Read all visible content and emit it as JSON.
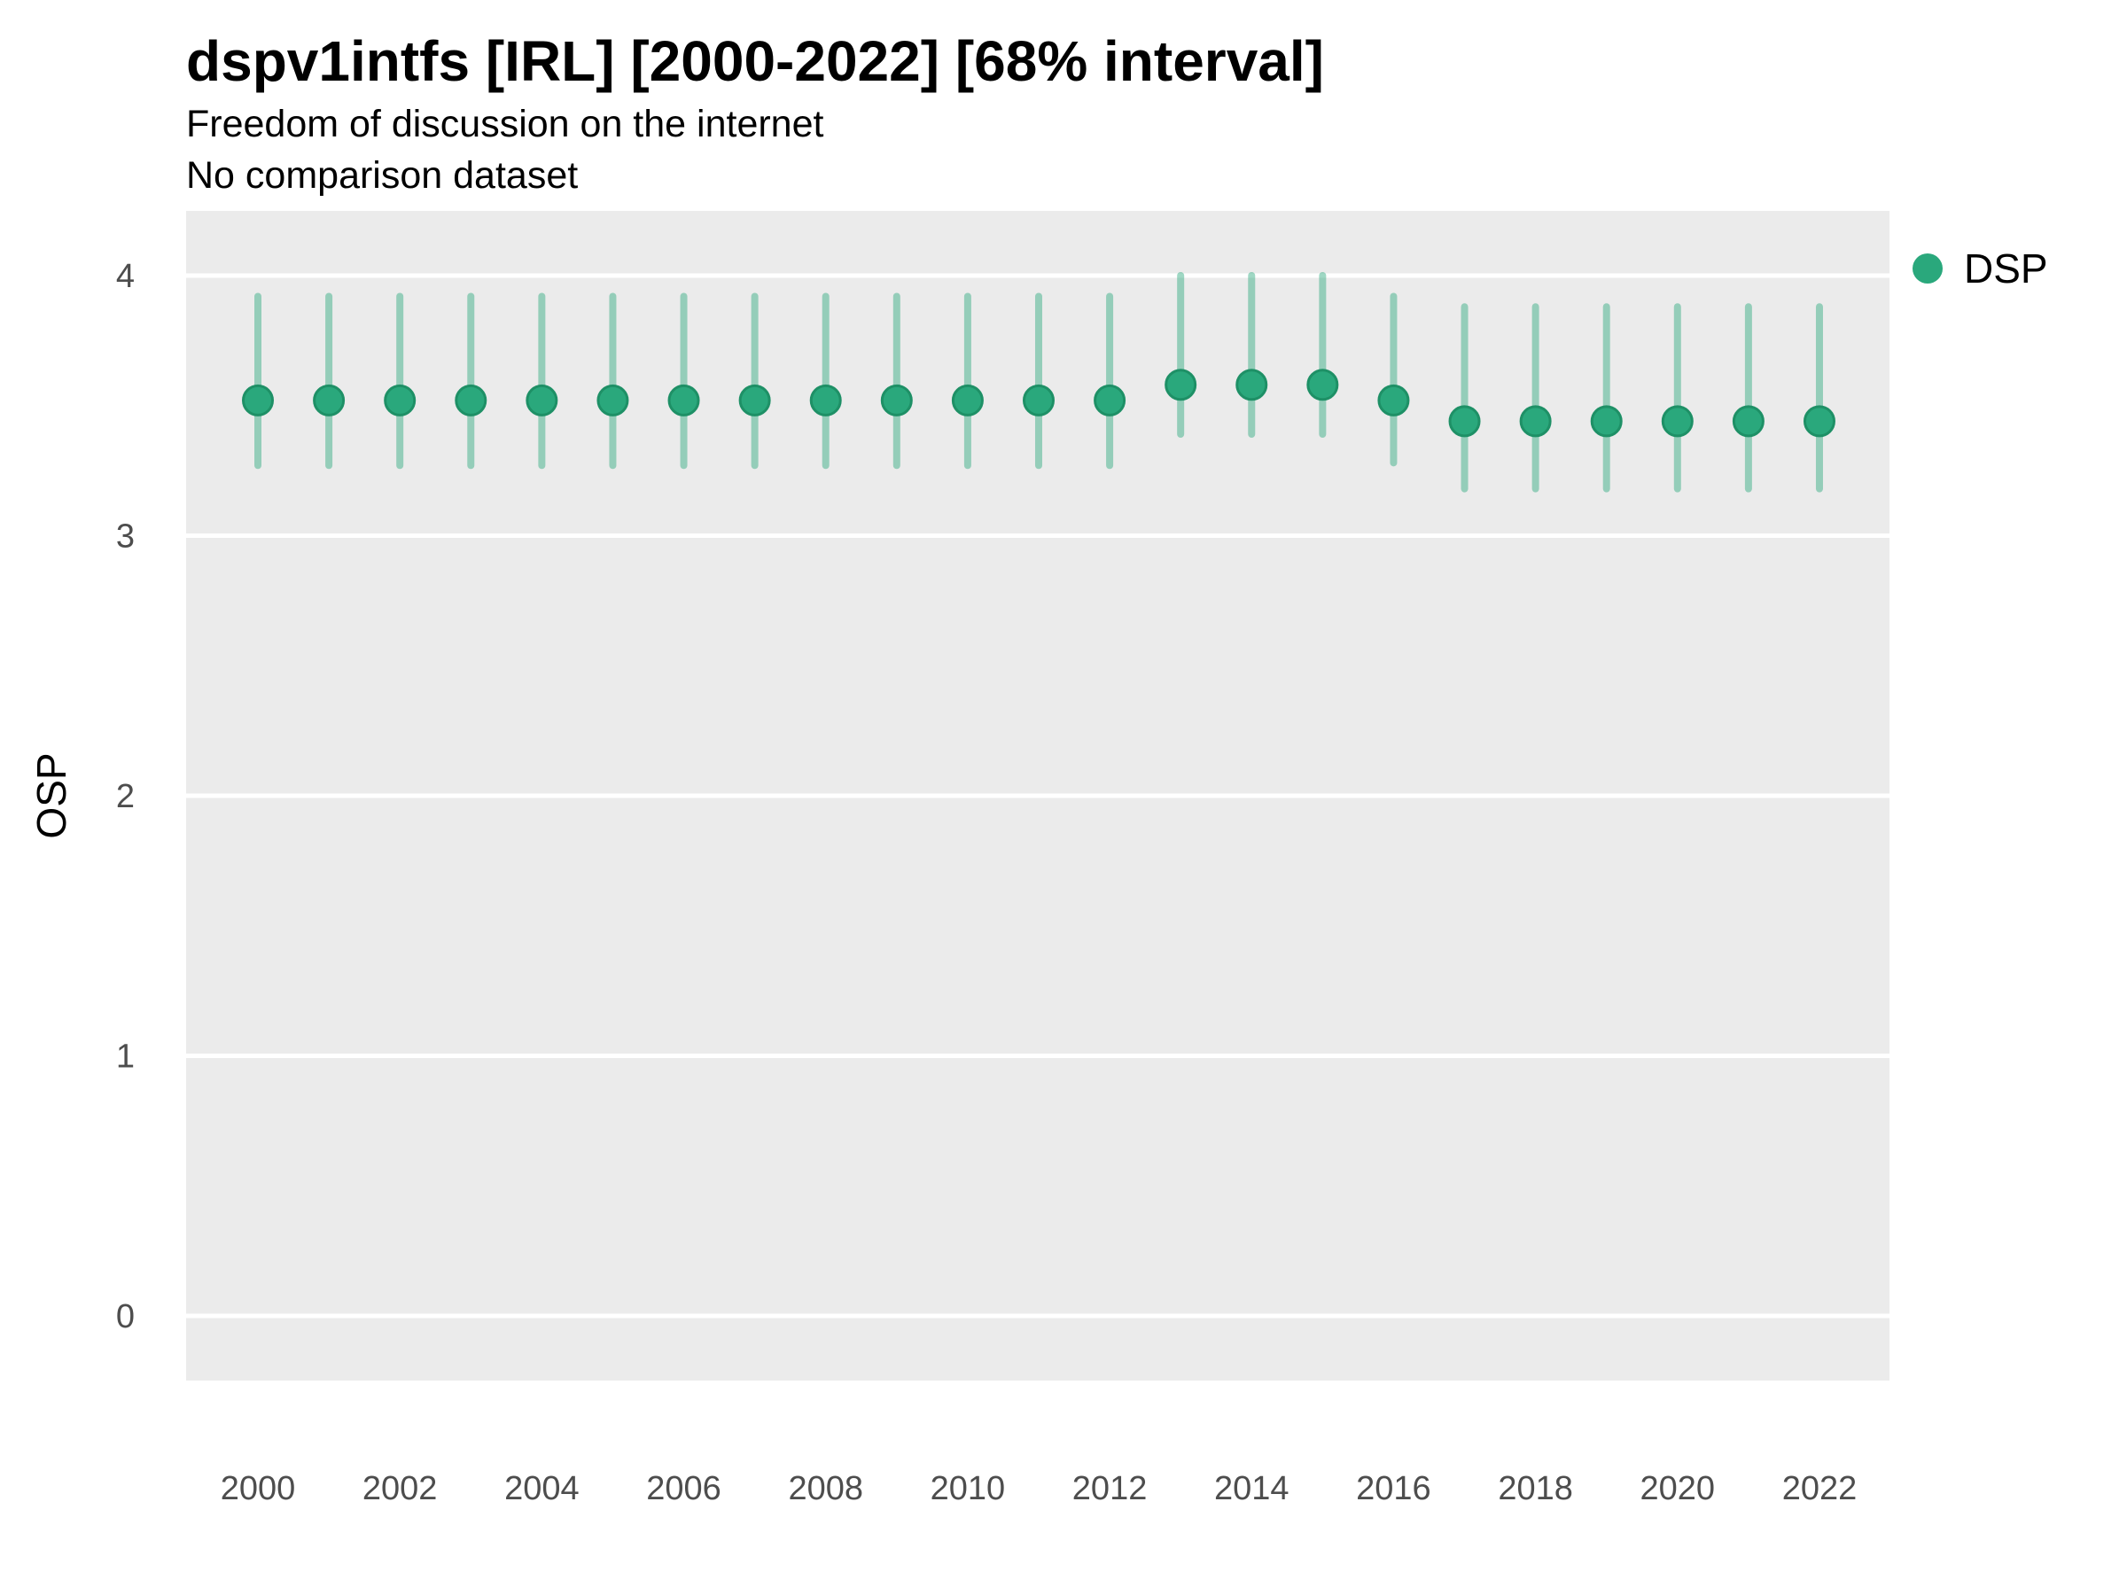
{
  "header": {
    "title": "dspv1intfs [IRL] [2000-2022] [68% interval]",
    "subtitle": "Freedom of discussion on the internet",
    "subtitle2": "No comparison dataset"
  },
  "colors": {
    "panel_background": "#EBEBEB",
    "gridline": "#FFFFFF",
    "point_fill": "#2AA87C",
    "point_stroke": "#1E9066",
    "interval": "rgba(42,168,124,0.45)",
    "tick_text": "#4D4D4D",
    "text": "#000000"
  },
  "chart_data": {
    "type": "pointrange",
    "title": "dspv1intfs [IRL] [2000-2022] [68% interval]",
    "subtitle": "Freedom of discussion on the internet",
    "subtitle2": "No comparison dataset",
    "xlabel": "",
    "ylabel": "OSP",
    "ylim": [
      -0.25,
      4.25
    ],
    "y_ticks": [
      0,
      1,
      2,
      3,
      4
    ],
    "x_ticks": [
      2000,
      2002,
      2004,
      2006,
      2008,
      2010,
      2012,
      2014,
      2016,
      2018,
      2020,
      2022
    ],
    "grid": "major-y only, white lines on grey panel",
    "legend": {
      "position": "right",
      "entries": [
        {
          "label": "DSP",
          "color": "#2AA87C"
        }
      ]
    },
    "interval_level": "68%",
    "series": [
      {
        "name": "DSP",
        "points": [
          {
            "year": 2000,
            "est": 3.52,
            "lo": 3.27,
            "hi": 3.92
          },
          {
            "year": 2001,
            "est": 3.52,
            "lo": 3.27,
            "hi": 3.92
          },
          {
            "year": 2002,
            "est": 3.52,
            "lo": 3.27,
            "hi": 3.92
          },
          {
            "year": 2003,
            "est": 3.52,
            "lo": 3.27,
            "hi": 3.92
          },
          {
            "year": 2004,
            "est": 3.52,
            "lo": 3.27,
            "hi": 3.92
          },
          {
            "year": 2005,
            "est": 3.52,
            "lo": 3.27,
            "hi": 3.92
          },
          {
            "year": 2006,
            "est": 3.52,
            "lo": 3.27,
            "hi": 3.92
          },
          {
            "year": 2007,
            "est": 3.52,
            "lo": 3.27,
            "hi": 3.92
          },
          {
            "year": 2008,
            "est": 3.52,
            "lo": 3.27,
            "hi": 3.92
          },
          {
            "year": 2009,
            "est": 3.52,
            "lo": 3.27,
            "hi": 3.92
          },
          {
            "year": 2010,
            "est": 3.52,
            "lo": 3.27,
            "hi": 3.92
          },
          {
            "year": 2011,
            "est": 3.52,
            "lo": 3.27,
            "hi": 3.92
          },
          {
            "year": 2012,
            "est": 3.52,
            "lo": 3.27,
            "hi": 3.92
          },
          {
            "year": 2013,
            "est": 3.58,
            "lo": 3.39,
            "hi": 4.0
          },
          {
            "year": 2014,
            "est": 3.58,
            "lo": 3.39,
            "hi": 4.0
          },
          {
            "year": 2015,
            "est": 3.58,
            "lo": 3.39,
            "hi": 4.0
          },
          {
            "year": 2016,
            "est": 3.52,
            "lo": 3.28,
            "hi": 3.92
          },
          {
            "year": 2017,
            "est": 3.44,
            "lo": 3.18,
            "hi": 3.88
          },
          {
            "year": 2018,
            "est": 3.44,
            "lo": 3.18,
            "hi": 3.88
          },
          {
            "year": 2019,
            "est": 3.44,
            "lo": 3.18,
            "hi": 3.88
          },
          {
            "year": 2020,
            "est": 3.44,
            "lo": 3.18,
            "hi": 3.88
          },
          {
            "year": 2021,
            "est": 3.44,
            "lo": 3.18,
            "hi": 3.88
          },
          {
            "year": 2022,
            "est": 3.44,
            "lo": 3.18,
            "hi": 3.88
          }
        ]
      }
    ]
  }
}
